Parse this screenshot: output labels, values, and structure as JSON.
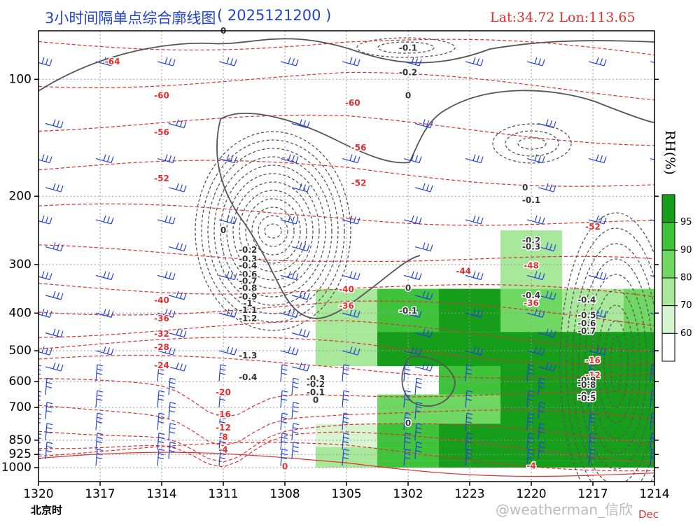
{
  "header": {
    "title": "3小时间隔单点综合廓线图",
    "run": "( 2025121200 )",
    "location": "Lat:34.72  Lon:113.65"
  },
  "footer": {
    "time_label": "北京时",
    "watermark": "@weatherman_信欣",
    "month": "Dec"
  },
  "colorbar": {
    "title": "RH(%)",
    "ticks": [
      "60",
      "70",
      "80",
      "90",
      "95"
    ],
    "colors": [
      "#ffffff",
      "#d6f5d0",
      "#a8e89b",
      "#6fd862",
      "#3ec33a",
      "#169d1a"
    ]
  },
  "colors": {
    "axis": "#000000",
    "title": "#2244cc",
    "location": "#e03030",
    "temperature": "#e03030",
    "omega": "#555555",
    "wind": "#2244dd"
  },
  "chart_data": {
    "type": "heatmap",
    "x": [
      "1320",
      "1317",
      "1314",
      "1311",
      "1308",
      "1305",
      "1302",
      "1223",
      "1220",
      "1217",
      "1214"
    ],
    "y_levels": [
      100,
      200,
      300,
      400,
      500,
      600,
      700,
      850,
      925,
      1000
    ],
    "y_tick_labels": [
      "100",
      "200",
      "300",
      "400",
      "500",
      "600",
      "700",
      "850",
      "925",
      "1000"
    ],
    "rh_percent": [
      [
        0,
        0,
        0,
        0,
        0,
        0,
        0,
        0,
        0,
        0,
        0
      ],
      [
        0,
        0,
        0,
        0,
        0,
        0,
        0,
        0,
        0,
        0,
        0
      ],
      [
        0,
        0,
        0,
        0,
        0,
        0,
        0,
        0,
        75,
        0,
        0
      ],
      [
        0,
        0,
        0,
        0,
        0,
        70,
        92,
        95,
        85,
        75,
        80
      ],
      [
        0,
        0,
        0,
        0,
        0,
        75,
        96,
        97,
        96,
        95,
        96
      ],
      [
        0,
        0,
        0,
        0,
        0,
        0,
        0,
        90,
        96,
        97,
        96
      ],
      [
        0,
        0,
        0,
        0,
        0,
        0,
        80,
        88,
        96,
        97,
        96
      ],
      [
        0,
        0,
        0,
        0,
        0,
        65,
        90,
        96,
        97,
        97,
        96
      ],
      [
        0,
        0,
        0,
        0,
        0,
        70,
        90,
        95,
        96,
        96,
        95
      ],
      [
        0,
        0,
        0,
        0,
        0,
        75,
        92,
        96,
        97,
        96,
        95
      ]
    ],
    "temperature_labels": [
      {
        "text": "-64",
        "x": 1.2,
        "p": 90
      },
      {
        "text": "-60",
        "x": 5.1,
        "p": 115
      },
      {
        "text": "-56",
        "x": 5.2,
        "p": 150
      },
      {
        "text": "-52",
        "x": 5.2,
        "p": 185
      },
      {
        "text": "-60",
        "x": 2.0,
        "p": 110
      },
      {
        "text": "-56",
        "x": 2.0,
        "p": 137
      },
      {
        "text": "-52",
        "x": 2.0,
        "p": 180
      },
      {
        "text": "-48",
        "x": 8.0,
        "p": 302
      },
      {
        "text": "-44",
        "x": 6.9,
        "p": 312
      },
      {
        "text": "-40",
        "x": 2.0,
        "p": 371
      },
      {
        "text": "-40",
        "x": 5.0,
        "p": 348
      },
      {
        "text": "-36",
        "x": 2.0,
        "p": 413
      },
      {
        "text": "-36",
        "x": 5.0,
        "p": 383
      },
      {
        "text": "-36",
        "x": 8.0,
        "p": 377
      },
      {
        "text": "-32",
        "x": 2.0,
        "p": 453
      },
      {
        "text": "-28",
        "x": 2.0,
        "p": 490
      },
      {
        "text": "-24",
        "x": 2.0,
        "p": 545
      },
      {
        "text": "-20",
        "x": 3.0,
        "p": 640
      },
      {
        "text": "-16",
        "x": 3.0,
        "p": 730
      },
      {
        "text": "-12",
        "x": 3.0,
        "p": 790
      },
      {
        "text": "-8",
        "x": 3.0,
        "p": 835
      },
      {
        "text": "-4",
        "x": 3.0,
        "p": 900
      },
      {
        "text": "0",
        "x": 4.0,
        "p": 993
      },
      {
        "text": "-16",
        "x": 9.0,
        "p": 530
      },
      {
        "text": "-12",
        "x": 9.0,
        "p": 578
      },
      {
        "text": "-52",
        "x": 9.0,
        "p": 240
      },
      {
        "text": "-4",
        "x": 8.0,
        "p": 990
      }
    ],
    "omega_labels": [
      {
        "text": "0",
        "x": 3.0,
        "p": 75
      },
      {
        "text": "-0.1",
        "x": 6.0,
        "p": 83
      },
      {
        "text": "-0.2",
        "x": 6.0,
        "p": 96
      },
      {
        "text": "0",
        "x": 6.0,
        "p": 110
      },
      {
        "text": "0",
        "x": 3.0,
        "p": 245
      },
      {
        "text": "-0.2",
        "x": 3.4,
        "p": 275
      },
      {
        "text": "-0.3",
        "x": 3.4,
        "p": 290
      },
      {
        "text": "-0.4",
        "x": 3.4,
        "p": 302
      },
      {
        "text": "-0.6",
        "x": 3.4,
        "p": 318
      },
      {
        "text": "-0.7",
        "x": 3.4,
        "p": 331
      },
      {
        "text": "-0.8",
        "x": 3.4,
        "p": 345
      },
      {
        "text": "-0.9",
        "x": 3.4,
        "p": 363
      },
      {
        "text": "-1",
        "x": 3.4,
        "p": 378
      },
      {
        "text": "-1.1",
        "x": 3.4,
        "p": 393
      },
      {
        "text": "-1.2",
        "x": 3.4,
        "p": 413
      },
      {
        "text": "-1.3",
        "x": 3.4,
        "p": 515
      },
      {
        "text": "-0.4",
        "x": 3.4,
        "p": 585
      },
      {
        "text": "-0.3",
        "x": 4.5,
        "p": 590
      },
      {
        "text": "-0.2",
        "x": 4.5,
        "p": 610
      },
      {
        "text": "-0.1",
        "x": 4.5,
        "p": 640
      },
      {
        "text": "0",
        "x": 4.5,
        "p": 670
      },
      {
        "text": "0",
        "x": 6.0,
        "p": 345
      },
      {
        "text": "-0.1",
        "x": 6.0,
        "p": 395
      },
      {
        "text": "0",
        "x": 7.9,
        "p": 190
      },
      {
        "text": "-0.1",
        "x": 8.0,
        "p": 205
      },
      {
        "text": "-0.2",
        "x": 8.0,
        "p": 260
      },
      {
        "text": "-0.3",
        "x": 8.0,
        "p": 270
      },
      {
        "text": "-0.4",
        "x": 8.0,
        "p": 360
      },
      {
        "text": "-0.4",
        "x": 8.9,
        "p": 370
      },
      {
        "text": "-0.5",
        "x": 8.9,
        "p": 405
      },
      {
        "text": "-0.6",
        "x": 8.9,
        "p": 425
      },
      {
        "text": "-0.7",
        "x": 8.9,
        "p": 445
      },
      {
        "text": "-0.9",
        "x": 8.9,
        "p": 595
      },
      {
        "text": "-0.8",
        "x": 8.9,
        "p": 613
      },
      {
        "text": "-0.6",
        "x": 8.9,
        "p": 651
      },
      {
        "text": "-0.5",
        "x": 8.9,
        "p": 663
      },
      {
        "text": "0",
        "x": 6.0,
        "p": 768
      }
    ]
  }
}
